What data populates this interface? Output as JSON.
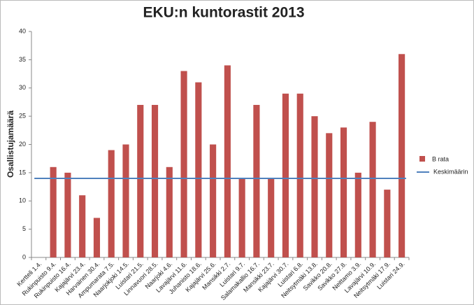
{
  "chart_data": {
    "type": "bar",
    "title": "EKU:n kuntorastit 2013",
    "y_label": "Osallistujamäärä",
    "categories": [
      "Kertteli 1.4.",
      "Rukinpuisto 9.4.",
      "Rukinpuisto 16.4.",
      "Kajajärvi 23.4.",
      "Harvainen 30.4.",
      "Ampumarata 7.5.",
      "Naarjokjoki 14.5.",
      "Luistari 21.5.",
      "Linnavuori 28.5.",
      "Naarjoki 4.6.",
      "Lavajärvi 11.6.",
      "Juhanisto 18.6.",
      "Kajajärvi 25.6.",
      "Mansikki 2.7.",
      "Luistari 9.7.",
      "Salamakallio 16.7.",
      "Mansikki 23.7.",
      "Kajajärvi 30.7.",
      "Luistari 6.8.",
      "Neitsytmäki 13.8.",
      "Savikko 20.8.",
      "Savikko 27.8.",
      "Neittamo 3.9.",
      "Lavajärvi 10.9.",
      "Neitsytmäki 17.9.",
      "Luistari 24.9."
    ],
    "series": [
      {
        "name": "B rata",
        "color": "#c0504d",
        "values": [
          null,
          16,
          15,
          11,
          7,
          19,
          20,
          27,
          27,
          16,
          33,
          31,
          20,
          34,
          14,
          27,
          14,
          29,
          29,
          25,
          22,
          23,
          15,
          24,
          12,
          36
        ]
      }
    ],
    "average": {
      "name": "Keskimäärin",
      "color": "#4f81bd",
      "value": 14
    },
    "ylim": [
      0,
      40
    ],
    "yticks": [
      0,
      5,
      10,
      15,
      20,
      25,
      30,
      35,
      40
    ]
  }
}
